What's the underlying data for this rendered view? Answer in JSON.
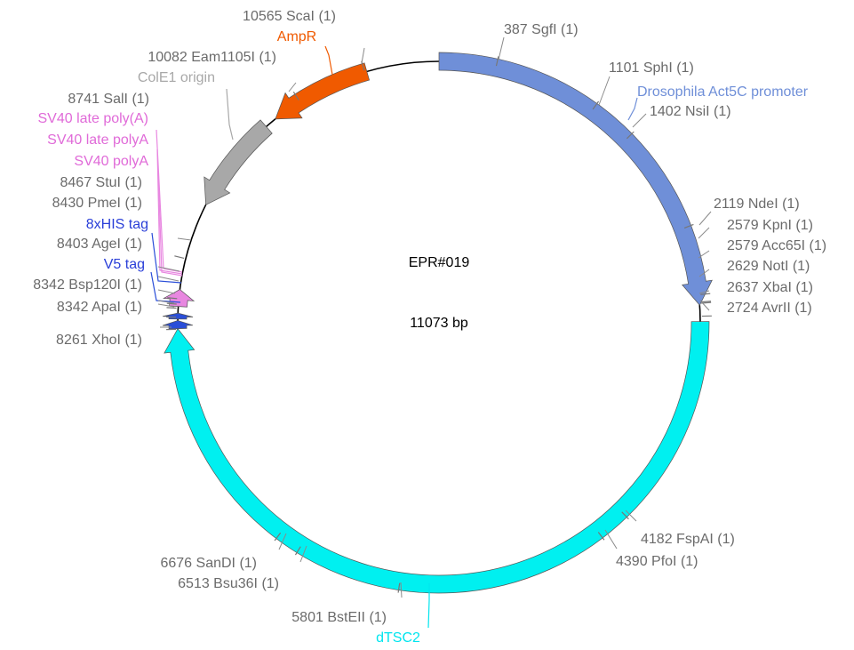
{
  "plasmid": {
    "name": "EPR#019",
    "length_text": "11073 bp",
    "length": 11073
  },
  "features": [
    {
      "name": "Drosophila Act5C promoter",
      "start": 0,
      "end": 2650,
      "direction": "forward",
      "color": "#6f8fd8"
    },
    {
      "name": "dTSC2",
      "start": 2760,
      "end": 8265,
      "direction": "forward",
      "color": "#00f0f0"
    },
    {
      "name": "V5 tag",
      "start": 8265,
      "end": 8320,
      "direction": "forward",
      "color": "#2a4ed8"
    },
    {
      "name": "8xHIS tag",
      "start": 8330,
      "end": 8370,
      "direction": "forward",
      "color": "#2a4ed8"
    },
    {
      "name": "SV40 late poly(A)",
      "start": 8415,
      "end": 8530,
      "direction": "forward",
      "color": "#e887e0"
    },
    {
      "name": "ColE1 origin",
      "start": 9130,
      "end": 9800,
      "direction": "reverse",
      "color": "#a8a8a8"
    },
    {
      "name": "AmpR",
      "start": 9880,
      "end": 10580,
      "direction": "reverse",
      "color": "#f05a00"
    }
  ],
  "feature_labels": [
    {
      "text": "Drosophila Act5C promoter",
      "color": "#6f8fd8"
    },
    {
      "text": "dTSC2",
      "color": "#00e5ee"
    },
    {
      "text": "AmpR",
      "color": "#f05a00"
    },
    {
      "text": "ColE1 origin",
      "color": "#a8a8a8"
    },
    {
      "text": "SV40 late poly(A)",
      "color": "#e06ad8"
    },
    {
      "text": "SV40 late polyA",
      "color": "#e06ad8"
    },
    {
      "text": "SV40 polyA",
      "color": "#e06ad8"
    },
    {
      "text": "8xHIS tag",
      "color": "#2a3fd8"
    },
    {
      "text": "V5 tag",
      "color": "#2a3fd8"
    }
  ],
  "sites": [
    {
      "label": "387 SgfI (1)",
      "position": 387
    },
    {
      "label": "1101 SphI (1)",
      "position": 1101
    },
    {
      "label": "1402 NsiI (1)",
      "position": 1402
    },
    {
      "label": "2119 NdeI (1)",
      "position": 2119
    },
    {
      "label": "2579 KpnI (1)",
      "position": 2579
    },
    {
      "label": "2579 Acc65I (1)",
      "position": 2579
    },
    {
      "label": "2629 NotI (1)",
      "position": 2629
    },
    {
      "label": "2637 XbaI (1)",
      "position": 2637
    },
    {
      "label": "2724 AvrII (1)",
      "position": 2724
    },
    {
      "label": "4182 FspAI (1)",
      "position": 4182
    },
    {
      "label": "4390 PfoI (1)",
      "position": 4390
    },
    {
      "label": "5801 BstEII (1)",
      "position": 5801
    },
    {
      "label": "6513 Bsu36I (1)",
      "position": 6513
    },
    {
      "label": "6676 SanDI (1)",
      "position": 6676
    },
    {
      "label": "8261 XhoI (1)",
      "position": 8261
    },
    {
      "label": "8342 ApaI (1)",
      "position": 8342
    },
    {
      "label": "8342 Bsp120I (1)",
      "position": 8342
    },
    {
      "label": "8403 AgeI (1)",
      "position": 8403
    },
    {
      "label": "8430 PmeI (1)",
      "position": 8430
    },
    {
      "label": "8467 StuI (1)",
      "position": 8467
    },
    {
      "label": "8741 SalI (1)",
      "position": 8741
    },
    {
      "label": "10082 Eam1105I (1)",
      "position": 10082
    },
    {
      "label": "10565 ScaI (1)",
      "position": 10565
    }
  ]
}
